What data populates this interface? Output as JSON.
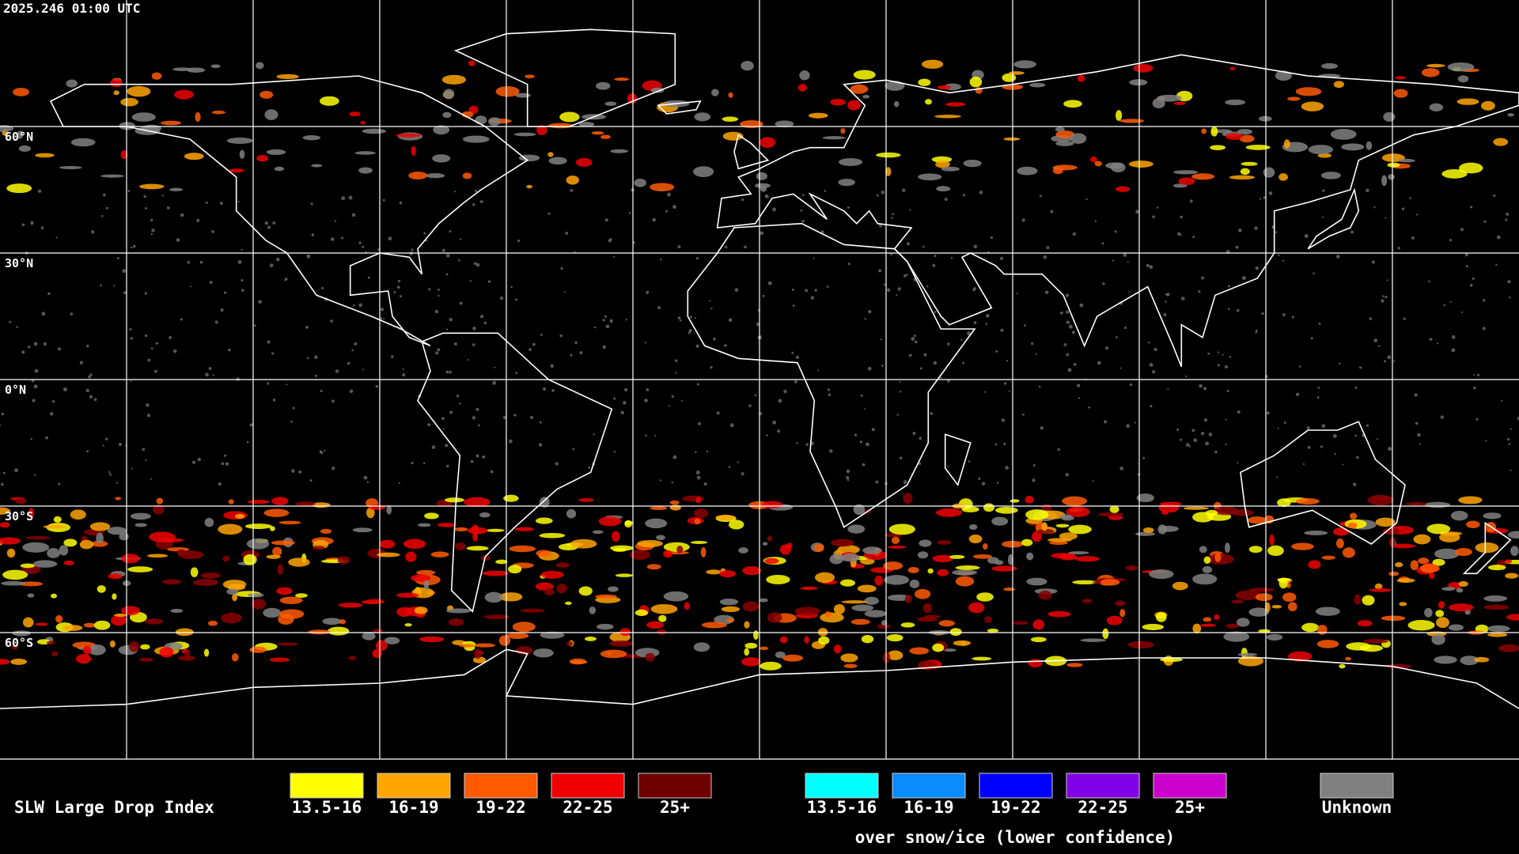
{
  "header": {
    "timestamp": "2025.246 01:00 UTC"
  },
  "map": {
    "lat_labels": [
      "60°N",
      "30°N",
      "0°N",
      "30°S",
      "60°S"
    ]
  },
  "legend": {
    "title": "SLW Large Drop Index",
    "items": [
      {
        "label": "13.5-16",
        "color": "#ffff00"
      },
      {
        "label": "16-19",
        "color": "#ffa500"
      },
      {
        "label": "19-22",
        "color": "#ff5a00"
      },
      {
        "label": "22-25",
        "color": "#ee0000"
      },
      {
        "label": "25+",
        "color": "#6e0000"
      }
    ],
    "snow_items": [
      {
        "label": "13.5-16",
        "color": "#00ffff"
      },
      {
        "label": "16-19",
        "color": "#0a8cff"
      },
      {
        "label": "19-22",
        "color": "#0000ff"
      },
      {
        "label": "22-25",
        "color": "#8200e6"
      },
      {
        "label": "25+",
        "color": "#cc00cc"
      }
    ],
    "snow_note": "over snow/ice (lower confidence)",
    "unknown": {
      "label": "Unknown",
      "color": "#808080"
    }
  }
}
